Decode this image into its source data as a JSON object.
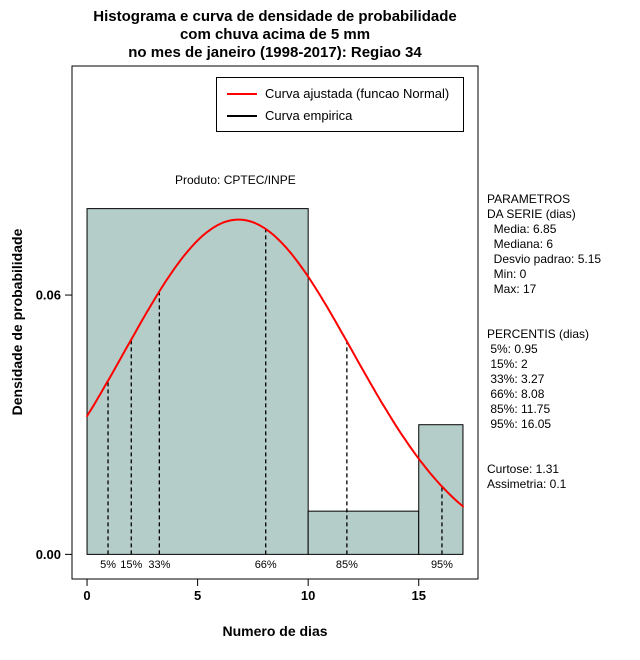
{
  "title": {
    "line1": "Histograma e curva de densidade de probabilidade",
    "line2": "com chuva acima de 5 mm",
    "line3": "no mes de janeiro (1998-2017): Regiao 34"
  },
  "annotation": "Produto: CPTEC/INPE",
  "legend": {
    "items": [
      {
        "label": "Curva ajustada (funcao Normal)",
        "color": "#ff0000"
      },
      {
        "label": "Curva empirica",
        "color": "#000000"
      }
    ]
  },
  "stats_panel": {
    "lines": [
      "PARAMETROS",
      "DA SERIE (dias)",
      "  Media: 6.85",
      "  Mediana: 6",
      "  Desvio padrao: 5.15",
      "  Min: 0",
      "  Max: 17",
      "",
      "",
      "PERCENTIS (dias)",
      " 5%: 0.95",
      " 15%: 2",
      " 33%: 3.27",
      " 66%: 8.08",
      " 85%: 11.75",
      " 95%: 16.05",
      "",
      "",
      "Curtose: 1.31",
      "Assimetria: 0.1"
    ]
  },
  "chart_data": {
    "type": "bar",
    "subtype": "histogram-with-density",
    "title": "Histograma e curva de densidade de probabilidade com chuva acima de 5 mm no mes de janeiro (1998-2017): Regiao 34",
    "xlabel": "Numero de dias",
    "ylabel": "Densidade de probabilidade",
    "xlim": [
      -0.68,
      17.68
    ],
    "ylim": [
      -0.0057,
      0.113
    ],
    "xticks": [
      0,
      5,
      10,
      15
    ],
    "yticks": [
      {
        "value": 0,
        "label": "0.00"
      },
      {
        "value": 0.06,
        "label": "0.06"
      }
    ],
    "grid": false,
    "legend_position": "top-center-inside",
    "bar_fill": "#b5cdc9",
    "bar_stroke": "#000000",
    "bars": [
      {
        "x0": 0,
        "x1": 10,
        "density": 0.08
      },
      {
        "x0": 10,
        "x1": 15,
        "density": 0.01
      },
      {
        "x0": 15,
        "x1": 17,
        "density": 0.03
      }
    ],
    "fitted_curve": {
      "distribution": "normal",
      "mean": 6.85,
      "sd": 5.15,
      "x_from": 0,
      "x_to": 17,
      "color": "#ff0000"
    },
    "percentiles": [
      {
        "label": "5%",
        "value": 0.95
      },
      {
        "label": "15%",
        "value": 2
      },
      {
        "label": "33%",
        "value": 3.27
      },
      {
        "label": "66%",
        "value": 8.08
      },
      {
        "label": "85%",
        "value": 11.75
      },
      {
        "label": "95%",
        "value": 16.05
      }
    ]
  }
}
